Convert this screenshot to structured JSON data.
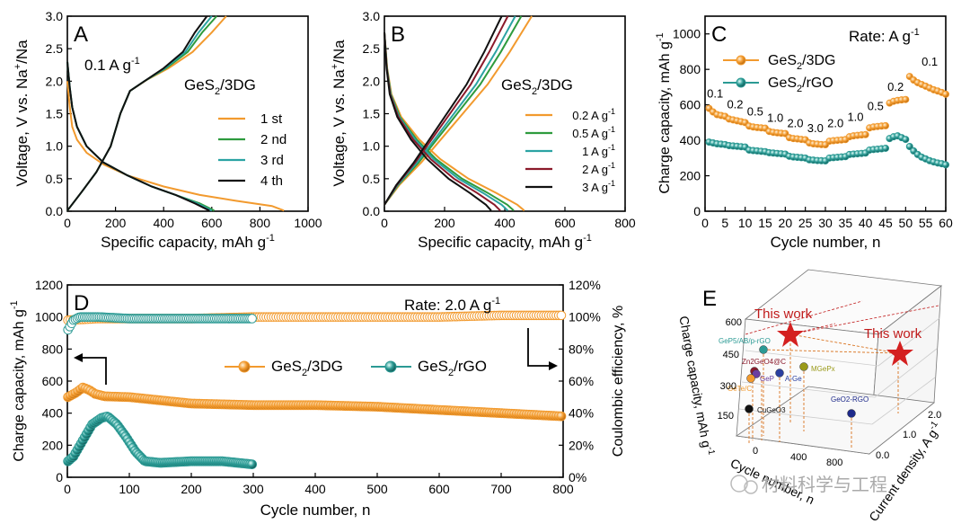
{
  "chart_data": [
    {
      "panel": "A",
      "type": "line",
      "title": "GeS2/3DG",
      "title_main": "GeS",
      "title_sub": "2",
      "title_tail": "/3DG",
      "rate_label": "0.1 A g",
      "rate_sup": "-1",
      "xlabel": "Specific capacity, mAh g",
      "xlabel_sup": "-1",
      "ylabel": "Voltage, V vs. Na+/Na",
      "ylabel_pre": "Voltage, V vs. Na",
      "ylabel_sup": "+",
      "ylabel_post": "/Na",
      "xlim": [
        0,
        1000
      ],
      "ylim": [
        0,
        3.0
      ],
      "xticks": [
        0,
        200,
        400,
        600,
        800,
        1000
      ],
      "yticks": [
        "0.0",
        "0.5",
        "1.0",
        "1.5",
        "2.0",
        "2.5",
        "3.0"
      ],
      "series": [
        {
          "name": "1 st",
          "color": "#F29A2E",
          "discharge": [
            [
              0,
              2.0
            ],
            [
              10,
              1.6
            ],
            [
              20,
              1.3
            ],
            [
              40,
              1.1
            ],
            [
              80,
              0.9
            ],
            [
              150,
              0.72
            ],
            [
              250,
              0.55
            ],
            [
              400,
              0.38
            ],
            [
              550,
              0.25
            ],
            [
              700,
              0.16
            ],
            [
              850,
              0.08
            ],
            [
              900,
              0.01
            ]
          ],
          "charge": [
            [
              0,
              0.01
            ],
            [
              60,
              0.3
            ],
            [
              120,
              0.6
            ],
            [
              180,
              1.0
            ],
            [
              220,
              1.5
            ],
            [
              260,
              1.85
            ],
            [
              330,
              2.02
            ],
            [
              420,
              2.2
            ],
            [
              520,
              2.45
            ],
            [
              600,
              2.75
            ],
            [
              660,
              3.0
            ]
          ]
        },
        {
          "name": "2 nd",
          "color": "#2E9B3E",
          "discharge": [
            [
              0,
              2.3
            ],
            [
              10,
              1.9
            ],
            [
              20,
              1.6
            ],
            [
              40,
              1.3
            ],
            [
              80,
              1.0
            ],
            [
              150,
              0.75
            ],
            [
              250,
              0.55
            ],
            [
              350,
              0.38
            ],
            [
              450,
              0.25
            ],
            [
              550,
              0.12
            ],
            [
              610,
              0.01
            ]
          ],
          "charge": [
            [
              0,
              0.01
            ],
            [
              60,
              0.3
            ],
            [
              120,
              0.6
            ],
            [
              180,
              1.0
            ],
            [
              220,
              1.5
            ],
            [
              260,
              1.85
            ],
            [
              320,
              2.0
            ],
            [
              410,
              2.2
            ],
            [
              500,
              2.45
            ],
            [
              560,
              2.75
            ],
            [
              620,
              3.0
            ]
          ]
        },
        {
          "name": "3 rd",
          "color": "#2BA3A3",
          "discharge": [
            [
              0,
              2.3
            ],
            [
              10,
              1.9
            ],
            [
              20,
              1.6
            ],
            [
              40,
              1.3
            ],
            [
              80,
              1.0
            ],
            [
              150,
              0.75
            ],
            [
              250,
              0.55
            ],
            [
              350,
              0.38
            ],
            [
              450,
              0.25
            ],
            [
              540,
              0.12
            ],
            [
              600,
              0.01
            ]
          ],
          "charge": [
            [
              0,
              0.01
            ],
            [
              60,
              0.3
            ],
            [
              120,
              0.6
            ],
            [
              180,
              1.0
            ],
            [
              220,
              1.5
            ],
            [
              260,
              1.85
            ],
            [
              320,
              2.0
            ],
            [
              405,
              2.2
            ],
            [
              490,
              2.45
            ],
            [
              545,
              2.75
            ],
            [
              600,
              3.0
            ]
          ]
        },
        {
          "name": "4 th",
          "color": "#111111",
          "discharge": [
            [
              0,
              2.3
            ],
            [
              10,
              1.9
            ],
            [
              20,
              1.6
            ],
            [
              40,
              1.3
            ],
            [
              80,
              1.0
            ],
            [
              150,
              0.75
            ],
            [
              250,
              0.55
            ],
            [
              350,
              0.38
            ],
            [
              450,
              0.25
            ],
            [
              530,
              0.12
            ],
            [
              590,
              0.01
            ]
          ],
          "charge": [
            [
              0,
              0.01
            ],
            [
              60,
              0.3
            ],
            [
              120,
              0.6
            ],
            [
              180,
              1.0
            ],
            [
              220,
              1.5
            ],
            [
              260,
              1.85
            ],
            [
              320,
              2.0
            ],
            [
              400,
              2.2
            ],
            [
              480,
              2.45
            ],
            [
              530,
              2.75
            ],
            [
              580,
              3.0
            ]
          ]
        }
      ]
    },
    {
      "panel": "B",
      "type": "line",
      "title": "GeS2/3DG",
      "title_main": "GeS",
      "title_sub": "2",
      "title_tail": "/3DG",
      "xlabel": "Specific capacity, mAh g",
      "xlabel_sup": "-1",
      "ylabel": "Voltage, V vs. Na+/Na",
      "ylabel_pre": "Voltage, V vs. Na",
      "ylabel_sup": "+",
      "ylabel_post": "/Na",
      "xlim": [
        0,
        800
      ],
      "ylim": [
        0,
        3.0
      ],
      "xticks": [
        0,
        200,
        400,
        600,
        800
      ],
      "yticks": [
        "0.0",
        "0.5",
        "1.0",
        "1.5",
        "2.0",
        "2.5",
        "3.0"
      ],
      "series": [
        {
          "name": "0.2 A g",
          "sup": "-1",
          "color": "#F29A2E",
          "cap_d": 465,
          "cap_c": 490
        },
        {
          "name": "0.5 A g",
          "sup": "-1",
          "color": "#2E9B3E",
          "cap_d": 430,
          "cap_c": 455
        },
        {
          "name": "1 A g",
          "sup": "-1",
          "color": "#2BA3A3",
          "cap_d": 410,
          "cap_c": 435
        },
        {
          "name": "2 A g",
          "sup": "-1",
          "color": "#8B1A2B",
          "cap_d": 385,
          "cap_c": 410
        },
        {
          "name": "3 A g",
          "sup": "-1",
          "color": "#111111",
          "cap_d": 355,
          "cap_c": 390
        }
      ]
    },
    {
      "panel": "C",
      "type": "scatter",
      "rate_title": "Rate: A g",
      "rate_sup": "-1",
      "xlabel": "Cycle number, n",
      "ylabel": "Charge capacity, mAh g",
      "ylabel_sup": "-1",
      "xlim": [
        0,
        60
      ],
      "ylim": [
        0,
        1100
      ],
      "xticks": [
        0,
        5,
        10,
        15,
        20,
        25,
        30,
        35,
        40,
        45,
        50,
        55,
        60
      ],
      "yticks": [
        0,
        200,
        400,
        600,
        800,
        1000
      ],
      "rate_labels": [
        {
          "text": "0.1",
          "x": 2.5,
          "y": 640
        },
        {
          "text": "0.2",
          "x": 7.5,
          "y": 580
        },
        {
          "text": "0.5",
          "x": 12.5,
          "y": 540
        },
        {
          "text": "1.0",
          "x": 17.5,
          "y": 505
        },
        {
          "text": "2.0",
          "x": 22.5,
          "y": 475
        },
        {
          "text": "3.0",
          "x": 27.5,
          "y": 445
        },
        {
          "text": "2.0",
          "x": 32.5,
          "y": 475
        },
        {
          "text": "1.0",
          "x": 37.5,
          "y": 510
        },
        {
          "text": "0.5",
          "x": 42.5,
          "y": 570
        },
        {
          "text": "0.2",
          "x": 47.5,
          "y": 680
        },
        {
          "text": "0.1",
          "x": 56,
          "y": 820
        }
      ],
      "series": [
        {
          "name": "GeS2/3DG",
          "main": "GeS",
          "sub": "2",
          "tail": "/3DG",
          "color": "#F29A2E",
          "values": [
            580,
            560,
            545,
            540,
            535,
            520,
            515,
            510,
            505,
            500,
            480,
            475,
            472,
            470,
            468,
            450,
            445,
            442,
            440,
            438,
            415,
            410,
            408,
            405,
            403,
            385,
            380,
            378,
            376,
            375,
            395,
            398,
            400,
            402,
            404,
            420,
            425,
            428,
            430,
            432,
            470,
            475,
            478,
            480,
            482,
            610,
            620,
            625,
            628,
            630,
            760,
            740,
            725,
            715,
            705,
            695,
            685,
            678,
            670,
            660
          ]
        },
        {
          "name": "GeS2/rGO",
          "main": "GeS",
          "sub": "2",
          "tail": "/rGO",
          "color": "#2B9A94",
          "values": [
            390,
            385,
            380,
            378,
            376,
            370,
            368,
            366,
            364,
            362,
            345,
            342,
            340,
            338,
            336,
            330,
            328,
            326,
            324,
            322,
            310,
            306,
            304,
            302,
            300,
            290,
            288,
            286,
            285,
            284,
            300,
            302,
            304,
            306,
            308,
            320,
            322,
            324,
            326,
            328,
            345,
            348,
            350,
            352,
            355,
            410,
            420,
            425,
            415,
            405,
            365,
            340,
            320,
            305,
            295,
            285,
            278,
            272,
            268,
            262
          ]
        }
      ]
    },
    {
      "panel": "D",
      "type": "scatter",
      "rate_title": "Rate: 2.0 A g",
      "rate_sup": "-1",
      "xlabel": "Cycle number, n",
      "ylabel": "Charge capacity, mAh g",
      "ylabel_sup": "-1",
      "y2label": "Coulombic efficiency, %",
      "xlim": [
        0,
        800
      ],
      "ylim": [
        0,
        1200
      ],
      "y2lim": [
        0,
        120
      ],
      "xticks": [
        0,
        100,
        200,
        300,
        400,
        500,
        600,
        700,
        800
      ],
      "yticks": [
        0,
        200,
        400,
        600,
        800,
        1000,
        1200
      ],
      "y2ticks": [
        "0%",
        "20%",
        "40%",
        "60%",
        "80%",
        "100%",
        "120%"
      ],
      "series": [
        {
          "name": "GeS2/3DG",
          "main": "GeS",
          "sub": "2",
          "tail": "/3DG",
          "color": "#F29A2E",
          "capacity": [
            [
              1,
              500
            ],
            [
              15,
              530
            ],
            [
              25,
              560
            ],
            [
              35,
              545
            ],
            [
              45,
              520
            ],
            [
              60,
              505
            ],
            [
              100,
              500
            ],
            [
              200,
              460
            ],
            [
              300,
              450
            ],
            [
              400,
              450
            ],
            [
              500,
              440
            ],
            [
              600,
              420
            ],
            [
              700,
              400
            ],
            [
              800,
              380
            ]
          ],
          "efficiency": [
            [
              1,
              98
            ],
            [
              50,
              99
            ],
            [
              100,
              99
            ],
            [
              200,
              99
            ],
            [
              300,
              100
            ],
            [
              400,
              100
            ],
            [
              500,
              100
            ],
            [
              600,
              100
            ],
            [
              700,
              101
            ],
            [
              800,
              101
            ]
          ]
        },
        {
          "name": "GeS2/rGO",
          "main": "GeS",
          "sub": "2",
          "tail": "/rGO",
          "color": "#2B9A94",
          "capacity": [
            [
              1,
              100
            ],
            [
              10,
              130
            ],
            [
              25,
              230
            ],
            [
              40,
              330
            ],
            [
              55,
              370
            ],
            [
              65,
              380
            ],
            [
              80,
              330
            ],
            [
              95,
              250
            ],
            [
              110,
              160
            ],
            [
              125,
              100
            ],
            [
              150,
              90
            ],
            [
              200,
              100
            ],
            [
              250,
              100
            ],
            [
              300,
              80
            ]
          ],
          "efficiency": [
            [
              1,
              92
            ],
            [
              10,
              98
            ],
            [
              20,
              100
            ],
            [
              50,
              100
            ],
            [
              100,
              99
            ],
            [
              150,
              99
            ],
            [
              200,
              99
            ],
            [
              250,
              99
            ],
            [
              300,
              99
            ]
          ]
        }
      ]
    },
    {
      "panel": "E",
      "type": "scatter",
      "zlabel": "Charge capacity, mAh g",
      "zlabel_sup": "-1",
      "xlabel": "Cycle number, n",
      "ylabel": "Current density, A g",
      "ylabel_sup": "-1",
      "ztick_labels": [
        "150",
        "300",
        "450",
        "600"
      ],
      "xtick_labels": [
        "0",
        "400",
        "800"
      ],
      "ytick_labels": [
        "0.0",
        "1.0",
        "2.0"
      ],
      "highlight_label": "This work",
      "points": [
        {
          "name": "GeP5/AB/p-rGO",
          "color": "#2B9A94"
        },
        {
          "name": "Zn2GeO4@C",
          "color": "#8B1A2B"
        },
        {
          "name": "GeP",
          "color": "#6A3FA0"
        },
        {
          "name": "GeTe/C",
          "color": "#F29A2E"
        },
        {
          "name": "A-Ge",
          "color": "#2A3FA0"
        },
        {
          "name": "MGePx",
          "color": "#9A9A1A"
        },
        {
          "name": "CuGeO3",
          "color": "#111111"
        },
        {
          "name": "GeO2-RGO",
          "color": "#1E2A8A"
        }
      ]
    }
  ],
  "watermark": "材料科学与工程"
}
